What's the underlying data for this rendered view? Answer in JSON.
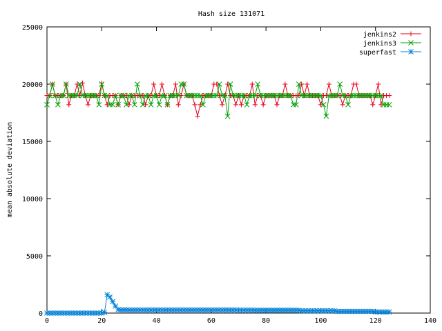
{
  "chart_data": {
    "type": "line",
    "title": "Hash size 131071",
    "xlabel": "",
    "ylabel": "mean absolute deviation",
    "xlim": [
      0,
      140
    ],
    "ylim": [
      0,
      25000
    ],
    "xticks": [
      0,
      20,
      40,
      60,
      80,
      100,
      120,
      140
    ],
    "yticks": [
      0,
      5000,
      10000,
      15000,
      20000,
      25000
    ],
    "grid": false,
    "legend_position": "top-right",
    "x": [
      0,
      1,
      2,
      3,
      4,
      5,
      6,
      7,
      8,
      9,
      10,
      11,
      12,
      13,
      14,
      15,
      16,
      17,
      18,
      19,
      20,
      21,
      22,
      23,
      24,
      25,
      26,
      27,
      28,
      29,
      30,
      31,
      32,
      33,
      34,
      35,
      36,
      37,
      38,
      39,
      40,
      41,
      42,
      43,
      44,
      45,
      46,
      47,
      48,
      49,
      50,
      51,
      52,
      53,
      54,
      55,
      56,
      57,
      58,
      59,
      60,
      61,
      62,
      63,
      64,
      65,
      66,
      67,
      68,
      69,
      70,
      71,
      72,
      73,
      74,
      75,
      76,
      77,
      78,
      79,
      80,
      81,
      82,
      83,
      84,
      85,
      86,
      87,
      88,
      89,
      90,
      91,
      92,
      93,
      94,
      95,
      96,
      97,
      98,
      99,
      100,
      101,
      102,
      103,
      104,
      105,
      106,
      107,
      108,
      109,
      110,
      111,
      112,
      113,
      114,
      115,
      116,
      117,
      118,
      119,
      120,
      121,
      122,
      123,
      124,
      125
    ],
    "series": [
      {
        "name": "jenkins2",
        "color": "#e8001a",
        "marker": "plus",
        "values": [
          19000,
          19000,
          20000,
          19000,
          19000,
          19000,
          19000,
          20000,
          18200,
          19000,
          19000,
          20000,
          19000,
          20100,
          19000,
          18200,
          19000,
          19000,
          19000,
          19000,
          20100,
          19000,
          18200,
          19000,
          19000,
          19000,
          18200,
          19000,
          19000,
          19000,
          18200,
          19000,
          19000,
          19000,
          19000,
          19000,
          18200,
          19000,
          19000,
          20000,
          19000,
          19000,
          20000,
          19000,
          18200,
          19000,
          19000,
          20000,
          18200,
          19000,
          20000,
          19000,
          19000,
          19000,
          18200,
          17200,
          18200,
          19000,
          19000,
          19000,
          19000,
          20000,
          20000,
          19000,
          18200,
          19000,
          20000,
          19000,
          19000,
          18200,
          19000,
          18200,
          19000,
          19000,
          19000,
          20000,
          18200,
          19000,
          19000,
          18200,
          19000,
          19000,
          19000,
          19000,
          18200,
          19000,
          19000,
          20000,
          19000,
          19000,
          19000,
          19000,
          19000,
          20000,
          19000,
          20000,
          19000,
          19000,
          19000,
          19000,
          18200,
          19000,
          19000,
          20000,
          19000,
          19000,
          19000,
          19000,
          18200,
          19000,
          19000,
          19000,
          20000,
          20000,
          19000,
          19000,
          19000,
          19000,
          19000,
          18200,
          19000,
          20000,
          18200,
          19000,
          19000,
          19000
        ],
        "label_values": []
      },
      {
        "name": "jenkins3",
        "color": "#00a000",
        "marker": "x",
        "values": [
          18200,
          19000,
          20000,
          19000,
          18200,
          19000,
          19000,
          20000,
          19000,
          19000,
          19000,
          19000,
          20000,
          19000,
          19000,
          19000,
          19000,
          19000,
          19000,
          18200,
          20000,
          19000,
          19000,
          18200,
          18200,
          19000,
          18200,
          19000,
          19000,
          18200,
          19000,
          19000,
          18200,
          20000,
          19000,
          18200,
          19000,
          19000,
          18200,
          19000,
          19000,
          18200,
          19000,
          19000,
          18200,
          19000,
          19000,
          19000,
          19000,
          20000,
          20000,
          19000,
          19000,
          19000,
          19000,
          19000,
          19000,
          18200,
          19000,
          19000,
          19000,
          19000,
          19000,
          20000,
          19000,
          19000,
          17200,
          20000,
          19000,
          19000,
          19000,
          19000,
          19000,
          18200,
          19000,
          19000,
          19000,
          20000,
          19000,
          19000,
          19000,
          19000,
          19000,
          19000,
          19000,
          19000,
          19000,
          19000,
          19000,
          19000,
          18200,
          18200,
          20000,
          19000,
          19000,
          19000,
          19000,
          19000,
          19000,
          19000,
          19000,
          18200,
          17200,
          19000,
          19000,
          19000,
          19000,
          20000,
          19000,
          19000,
          18200,
          19000,
          19000,
          19000,
          19000,
          19000,
          19000,
          19000,
          19000,
          19000,
          19000,
          19000,
          19000,
          18200,
          18200,
          18200
        ]
      },
      {
        "name": "superfast",
        "color": "#0080d8",
        "marker": "star",
        "values": [
          0,
          0,
          0,
          0,
          0,
          0,
          0,
          0,
          0,
          0,
          0,
          0,
          0,
          0,
          0,
          0,
          0,
          0,
          0,
          0,
          0,
          50,
          1600,
          1400,
          1000,
          600,
          300,
          280,
          280,
          280,
          270,
          270,
          270,
          270,
          270,
          270,
          270,
          270,
          270,
          270,
          270,
          270,
          270,
          270,
          270,
          270,
          270,
          270,
          270,
          270,
          270,
          270,
          270,
          270,
          270,
          270,
          270,
          270,
          270,
          270,
          270,
          270,
          270,
          270,
          270,
          270,
          270,
          270,
          270,
          270,
          260,
          260,
          260,
          260,
          260,
          260,
          250,
          250,
          250,
          250,
          250,
          250,
          250,
          250,
          250,
          250,
          250,
          250,
          250,
          250,
          250,
          250,
          240,
          200,
          200,
          200,
          200,
          200,
          200,
          200,
          200,
          200,
          200,
          200,
          200,
          200,
          150,
          150,
          150,
          150,
          150,
          150,
          150,
          150,
          150,
          150,
          150,
          150,
          150,
          150,
          100,
          100,
          100,
          100,
          100,
          100
        ]
      }
    ]
  }
}
